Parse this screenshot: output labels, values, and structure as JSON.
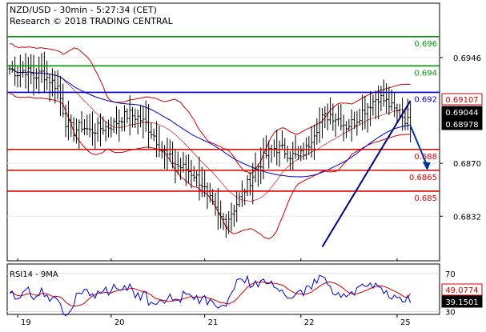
{
  "header": {
    "line1": "NZD/USD - 30min - 5:27:34 (CET)",
    "line2": "Research © 2018 TRADING CENTRAL"
  },
  "chart_data": {
    "type": "line",
    "title": "NZD/USD - 30min - 5:27:34 (CET)",
    "price_axis": {
      "ylim": [
        0.68,
        0.6985
      ],
      "ticks": [
        "0.6946",
        "0.6870",
        "0.6832"
      ]
    },
    "x_ticks": [
      "19",
      "20",
      "21",
      "22",
      "25"
    ],
    "levels": [
      {
        "label": "0.696",
        "price": 0.6961,
        "color": "#009900"
      },
      {
        "label": "0.694",
        "price": 0.694,
        "color": "#009900"
      },
      {
        "label": "0.692",
        "price": 0.6921,
        "color": "#0000cc"
      },
      {
        "label": "0.688",
        "price": 0.688,
        "color": "#dd0000"
      },
      {
        "label": "0.6865",
        "price": 0.6865,
        "color": "#dd0000"
      },
      {
        "label": "0.685",
        "price": 0.685,
        "color": "#dd0000"
      }
    ],
    "price_tags": [
      {
        "label": "0.69107",
        "price": 0.69107,
        "bg": "#ffffff",
        "fg": "#cc0000",
        "border": "#cc0000"
      },
      {
        "label": "0.69044",
        "price": 0.69044,
        "bg": "#000000",
        "fg": "#ffffff",
        "border": "#000000"
      },
      {
        "label": "0.68978",
        "price": 0.68978,
        "bg": "#000000",
        "fg": "#ffffff",
        "border": "#000000"
      }
    ],
    "close_path": [
      [
        0,
        0.6938
      ],
      [
        3,
        0.6935
      ],
      [
        6,
        0.6937
      ],
      [
        9,
        0.6932
      ],
      [
        12,
        0.6935
      ],
      [
        15,
        0.693
      ],
      [
        18,
        0.6925
      ],
      [
        21,
        0.69
      ],
      [
        24,
        0.6893
      ],
      [
        27,
        0.6897
      ],
      [
        30,
        0.6893
      ],
      [
        33,
        0.6895
      ],
      [
        36,
        0.6896
      ],
      [
        39,
        0.6898
      ],
      [
        42,
        0.6903
      ],
      [
        45,
        0.6905
      ],
      [
        48,
        0.6903
      ],
      [
        51,
        0.6898
      ],
      [
        54,
        0.689
      ],
      [
        57,
        0.688
      ],
      [
        60,
        0.6873
      ],
      [
        63,
        0.6868
      ],
      [
        66,
        0.6866
      ],
      [
        69,
        0.6862
      ],
      [
        72,
        0.6855
      ],
      [
        75,
        0.6843
      ],
      [
        78,
        0.6832
      ],
      [
        81,
        0.6828
      ],
      [
        84,
        0.6838
      ],
      [
        87,
        0.6848
      ],
      [
        90,
        0.6858
      ],
      [
        93,
        0.6868
      ],
      [
        96,
        0.6876
      ],
      [
        99,
        0.6881
      ],
      [
        102,
        0.688
      ],
      [
        105,
        0.6876
      ],
      [
        108,
        0.6874
      ],
      [
        111,
        0.688
      ],
      [
        114,
        0.6893
      ],
      [
        117,
        0.6902
      ],
      [
        120,
        0.6905
      ],
      [
        123,
        0.6902
      ],
      [
        126,
        0.6897
      ],
      [
        129,
        0.69
      ],
      [
        132,
        0.6907
      ],
      [
        135,
        0.6913
      ],
      [
        138,
        0.6918
      ],
      [
        141,
        0.6914
      ],
      [
        144,
        0.6908
      ],
      [
        147,
        0.6904
      ],
      [
        150,
        0.6898
      ]
    ],
    "bars_last_index": 150,
    "trendline": {
      "from": [
        117,
        0.681
      ],
      "to": [
        150,
        0.6915
      ],
      "color": "#000080"
    },
    "forecast_arrow": {
      "from": [
        150,
        0.6897
      ],
      "to": [
        156,
        0.6866
      ],
      "color": "#003399"
    },
    "rsi": {
      "label": "RSI14 - 9MA",
      "ylim": [
        27,
        80
      ],
      "ticks": [
        "70",
        "30"
      ],
      "tags": [
        {
          "label": "49.0774",
          "value": 49.0774,
          "bg": "#ffffff",
          "fg": "#cc0000",
          "border": "#cc0000"
        },
        {
          "label": "39.1501",
          "value": 39.1501,
          "bg": "#000000",
          "fg": "#ffffff",
          "border": "#000000"
        }
      ]
    },
    "colors": {
      "bars": "#000000",
      "bollinger": "#cc0000",
      "ma": "#0000cc",
      "grid": "#e8e8e8"
    }
  }
}
